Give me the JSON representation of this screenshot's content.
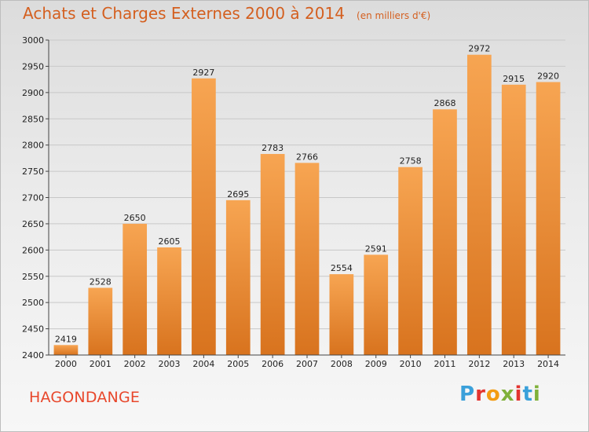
{
  "header": {
    "title": "Achats et Charges Externes 2000 à 2014",
    "subtitle": "(en milliers d'€)"
  },
  "place": "HAGONDANGE",
  "brand": {
    "letters": [
      "P",
      "r",
      "o",
      "x",
      "i",
      "t",
      "i"
    ],
    "colors": [
      "#3aa0da",
      "#e3342f",
      "#f39c12",
      "#7fb13a",
      "#e3342f",
      "#3aa0da",
      "#7fb13a"
    ]
  },
  "colors": {
    "bar_top": "#f7a552",
    "bar_bottom": "#d8731e",
    "grid": "#c8c8c8",
    "title": "#d45f1f"
  },
  "chart_data": {
    "type": "bar",
    "categories": [
      "2000",
      "2001",
      "2002",
      "2003",
      "2004",
      "2005",
      "2006",
      "2007",
      "2008",
      "2009",
      "2010",
      "2011",
      "2012",
      "2013",
      "2014"
    ],
    "values": [
      2419,
      2528,
      2650,
      2605,
      2927,
      2695,
      2783,
      2766,
      2554,
      2591,
      2758,
      2868,
      2972,
      2915,
      2920
    ],
    "ylim": [
      2400,
      3000
    ],
    "yticks": [
      2400,
      2450,
      2500,
      2550,
      2600,
      2650,
      2700,
      2750,
      2800,
      2850,
      2900,
      2950,
      3000
    ],
    "grid": true,
    "data_labels": true
  }
}
